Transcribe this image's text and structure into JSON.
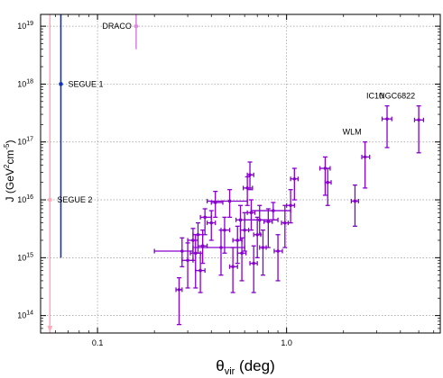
{
  "chart_data": {
    "type": "scatter",
    "xlabel_main": "θ",
    "xlabel_sub": "vir",
    "xlabel_rest": " (deg)",
    "ylabel_pre": "J (GeV",
    "ylabel_sup1": "2",
    "ylabel_mid": "cm",
    "ylabel_sup2": "-5",
    "ylabel_post": ")",
    "x_log": true,
    "y_log": true,
    "xlim": [
      0.05,
      6.5
    ],
    "ylim": [
      50000000000000.0,
      1.6e+19
    ],
    "x_ticks": [
      {
        "value": 0.1,
        "label": "0.1"
      },
      {
        "value": 1.0,
        "label": "1.0"
      }
    ],
    "y_ticks": [
      {
        "value": 100000000000000.0,
        "base": "10",
        "exp": "14"
      },
      {
        "value": 1000000000000000.0,
        "base": "10",
        "exp": "15"
      },
      {
        "value": 1e+16,
        "base": "10",
        "exp": "16"
      },
      {
        "value": 1e+17,
        "base": "10",
        "exp": "17"
      },
      {
        "value": 1e+18,
        "base": "10",
        "exp": "18"
      },
      {
        "value": 1e+19,
        "base": "10",
        "exp": "19"
      }
    ],
    "grid": true,
    "colors": {
      "purple": "#8800cc",
      "blue": "#1133bb",
      "pink": "#ffaabb",
      "violet_light": "#dd88dd"
    },
    "special_points": [
      {
        "name": "DRACO",
        "x": 0.16,
        "y": 1e+19,
        "y_lo": 4e+18,
        "y_hi": 1.6e+19,
        "color": "#dd88dd",
        "label": "DRACO",
        "label_side": "left"
      },
      {
        "name": "SEGUE 1",
        "x": 0.064,
        "y": 1e+18,
        "y_lo": 1000000000000000.0,
        "y_hi": 1.6e+19,
        "color": "#1133bb",
        "label": "SEGUE 1",
        "label_side": "right"
      },
      {
        "name": "SEGUE 2",
        "x": 0.056,
        "y": 1e+16,
        "y_lo": 50000000000000.0,
        "y_hi": 1.6e+19,
        "color": "#ffaabb",
        "label": "SEGUE 2",
        "label_side": "right",
        "arrow_down": true
      }
    ],
    "labeled_points": [
      {
        "name": "WLM",
        "label": "WLM",
        "x": 2.6,
        "y": 5.5e+16,
        "y_lo": 1.6e+16,
        "y_hi": 1e+17,
        "x_lo": 2.5,
        "x_hi": 2.75
      },
      {
        "name": "IC10",
        "label": "IC10",
        "x": 3.4,
        "y": 2.5e+17,
        "y_lo": 8e+16,
        "y_hi": 4.2e+17,
        "x_lo": 3.2,
        "x_hi": 3.6
      },
      {
        "name": "NGC6822",
        "label": "NGC6822",
        "x": 5.0,
        "y": 2.4e+17,
        "y_lo": 6.5e+16,
        "y_hi": 4.2e+17,
        "x_lo": 4.75,
        "x_hi": 5.3
      }
    ],
    "series_points": [
      {
        "x": 0.27,
        "y": 280000000000000.0,
        "y_lo": 70000000000000.0,
        "y_hi": 450000000000000.0,
        "x_lo": 0.26,
        "x_hi": 0.28
      },
      {
        "x": 0.28,
        "y": 1300000000000000.0,
        "y_lo": 700000000000000.0,
        "y_hi": 2200000000000000.0,
        "x_lo": 0.2,
        "x_hi": 0.32
      },
      {
        "x": 0.3,
        "y": 900000000000000.0,
        "y_lo": 300000000000000.0,
        "y_hi": 1800000000000000.0,
        "x_lo": 0.28,
        "x_hi": 0.32
      },
      {
        "x": 0.32,
        "y": 2000000000000000.0,
        "y_lo": 900000000000000.0,
        "y_hi": 3200000000000000.0,
        "x_lo": 0.3,
        "x_hi": 0.34
      },
      {
        "x": 0.33,
        "y": 1200000000000000.0,
        "y_lo": 300000000000000.0,
        "y_hi": 2500000000000000.0,
        "x_lo": 0.31,
        "x_hi": 0.35
      },
      {
        "x": 0.34,
        "y": 2500000000000000.0,
        "y_lo": 1200000000000000.0,
        "y_hi": 4000000000000000.0,
        "x_lo": 0.32,
        "x_hi": 0.36
      },
      {
        "x": 0.35,
        "y": 600000000000000.0,
        "y_lo": 250000000000000.0,
        "y_hi": 1200000000000000.0,
        "x_lo": 0.33,
        "x_hi": 0.37
      },
      {
        "x": 0.36,
        "y": 1600000000000000.0,
        "y_lo": 800000000000000.0,
        "y_hi": 3000000000000000.0,
        "x_lo": 0.34,
        "x_hi": 0.38
      },
      {
        "x": 0.37,
        "y": 5000000000000000.0,
        "y_lo": 2500000000000000.0,
        "y_hi": 7000000000000000.0,
        "x_lo": 0.35,
        "x_hi": 0.4
      },
      {
        "x": 0.4,
        "y": 4000000000000000.0,
        "y_lo": 2000000000000000.0,
        "y_hi": 6500000000000000.0,
        "x_lo": 0.38,
        "x_hi": 0.42
      },
      {
        "x": 0.42,
        "y": 9000000000000000.0,
        "y_lo": 5000000000000000.0,
        "y_hi": 1.4e+16,
        "x_lo": 0.4,
        "x_hi": 0.46
      },
      {
        "x": 0.45,
        "y": 1500000000000000.0,
        "y_lo": 500000000000000.0,
        "y_hi": 3000000000000000.0,
        "x_lo": 0.32,
        "x_hi": 0.6
      },
      {
        "x": 0.47,
        "y": 3000000000000000.0,
        "y_lo": 1200000000000000.0,
        "y_hi": 5000000000000000.0,
        "x_lo": 0.45,
        "x_hi": 0.5
      },
      {
        "x": 0.5,
        "y": 9500000000000000.0,
        "y_lo": 5000000000000000.0,
        "y_hi": 1.5e+16,
        "x_lo": 0.38,
        "x_hi": 0.62
      },
      {
        "x": 0.52,
        "y": 700000000000000.0,
        "y_lo": 250000000000000.0,
        "y_hi": 1500000000000000.0,
        "x_lo": 0.5,
        "x_hi": 0.55
      },
      {
        "x": 0.55,
        "y": 2000000000000000.0,
        "y_lo": 800000000000000.0,
        "y_hi": 3500000000000000.0,
        "x_lo": 0.52,
        "x_hi": 0.58
      },
      {
        "x": 0.57,
        "y": 4500000000000000.0,
        "y_lo": 2000000000000000.0,
        "y_hi": 8000000000000000.0,
        "x_lo": 0.54,
        "x_hi": 0.6
      },
      {
        "x": 0.58,
        "y": 1200000000000000.0,
        "y_lo": 400000000000000.0,
        "y_hi": 2200000000000000.0,
        "x_lo": 0.55,
        "x_hi": 0.61
      },
      {
        "x": 0.6,
        "y": 3000000000000000.0,
        "y_lo": 1300000000000000.0,
        "y_hi": 6000000000000000.0,
        "x_lo": 0.57,
        "x_hi": 0.63
      },
      {
        "x": 0.62,
        "y": 1.6e+16,
        "y_lo": 8000000000000000.0,
        "y_hi": 2.5e+16,
        "x_lo": 0.59,
        "x_hi": 0.66
      },
      {
        "x": 0.64,
        "y": 2.7e+16,
        "y_lo": 1.5e+16,
        "y_hi": 4.5e+16,
        "x_lo": 0.62,
        "x_hi": 0.67
      },
      {
        "x": 0.65,
        "y": 6000000000000000.0,
        "y_lo": 3000000000000000.0,
        "y_hi": 1e+16,
        "x_lo": 0.62,
        "x_hi": 0.68
      },
      {
        "x": 0.67,
        "y": 800000000000000.0,
        "y_lo": 250000000000000.0,
        "y_hi": 1600000000000000.0,
        "x_lo": 0.64,
        "x_hi": 0.7
      },
      {
        "x": 0.7,
        "y": 2500000000000000.0,
        "y_lo": 1000000000000000.0,
        "y_hi": 5000000000000000.0,
        "x_lo": 0.67,
        "x_hi": 0.73
      },
      {
        "x": 0.72,
        "y": 4500000000000000.0,
        "y_lo": 2500000000000000.0,
        "y_hi": 8000000000000000.0,
        "x_lo": 0.6,
        "x_hi": 0.9
      },
      {
        "x": 0.75,
        "y": 1500000000000000.0,
        "y_lo": 500000000000000.0,
        "y_hi": 3000000000000000.0,
        "x_lo": 0.72,
        "x_hi": 0.78
      },
      {
        "x": 0.8,
        "y": 4200000000000000.0,
        "y_lo": 1500000000000000.0,
        "y_hi": 7000000000000000.0,
        "x_lo": 0.76,
        "x_hi": 0.84
      },
      {
        "x": 0.85,
        "y": 6500000000000000.0,
        "y_lo": 4500000000000000.0,
        "y_hi": 9000000000000000.0,
        "x_lo": 0.65,
        "x_hi": 1.05
      },
      {
        "x": 0.9,
        "y": 1300000000000000.0,
        "y_lo": 400000000000000.0,
        "y_hi": 2500000000000000.0,
        "x_lo": 0.86,
        "x_hi": 0.95
      },
      {
        "x": 0.98,
        "y": 4000000000000000.0,
        "y_lo": 1500000000000000.0,
        "y_hi": 8000000000000000.0,
        "x_lo": 0.94,
        "x_hi": 1.02
      },
      {
        "x": 1.05,
        "y": 8000000000000000.0,
        "y_lo": 4000000000000000.0,
        "y_hi": 1.5e+16,
        "x_lo": 1.0,
        "x_hi": 1.1
      },
      {
        "x": 1.1,
        "y": 2.3e+16,
        "y_lo": 1e+16,
        "y_hi": 3.5e+16,
        "x_lo": 1.05,
        "x_hi": 1.15
      },
      {
        "x": 1.6,
        "y": 3.5e+16,
        "y_lo": 1.2e+16,
        "y_hi": 5.5e+16,
        "x_lo": 1.5,
        "x_hi": 1.7
      },
      {
        "x": 1.65,
        "y": 2e+16,
        "y_lo": 8000000000000000.0,
        "y_hi": 3.5e+16,
        "x_lo": 1.6,
        "x_hi": 1.72
      },
      {
        "x": 2.3,
        "y": 9500000000000000.0,
        "y_lo": 3500000000000000.0,
        "y_hi": 1.8e+16,
        "x_lo": 2.2,
        "x_hi": 2.4
      }
    ]
  }
}
